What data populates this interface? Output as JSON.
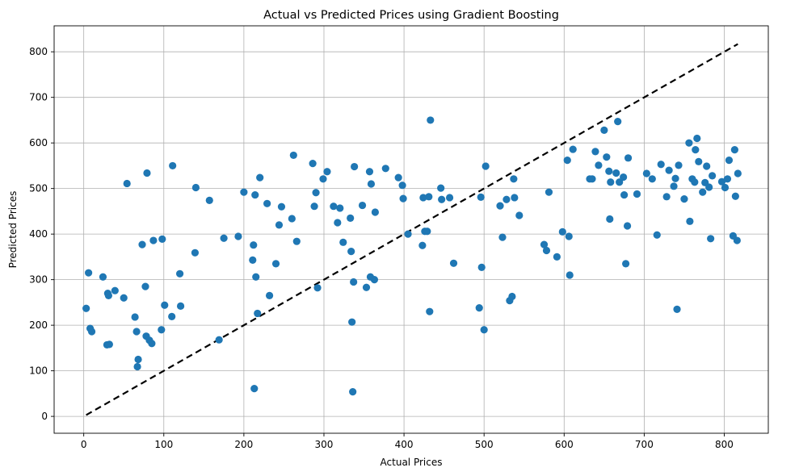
{
  "chart_data": {
    "type": "scatter",
    "title": "Actual vs Predicted Prices using Gradient Boosting",
    "xlabel": "Actual Prices",
    "ylabel": "Predicted Prices",
    "xlim": [
      -37,
      855
    ],
    "ylim": [
      -37,
      857
    ],
    "xticks": [
      0,
      100,
      200,
      300,
      400,
      500,
      600,
      700,
      800
    ],
    "yticks": [
      0,
      100,
      200,
      300,
      400,
      500,
      600,
      700,
      800
    ],
    "grid": true,
    "point_color": "#1f77b4",
    "reference_line": {
      "style": "dashed",
      "color": "#000000",
      "points": [
        [
          3,
          3
        ],
        [
          817,
          817
        ]
      ]
    },
    "series": [
      {
        "points": [
          [
            3,
            237
          ],
          [
            6,
            315
          ],
          [
            8,
            193
          ],
          [
            10,
            186
          ],
          [
            24,
            306
          ],
          [
            29,
            157
          ],
          [
            30,
            270
          ],
          [
            31,
            265
          ],
          [
            32,
            158
          ],
          [
            39,
            276
          ],
          [
            50,
            260
          ],
          [
            54,
            511
          ],
          [
            64,
            218
          ],
          [
            66,
            186
          ],
          [
            67,
            109
          ],
          [
            68,
            125
          ],
          [
            73,
            377
          ],
          [
            77,
            285
          ],
          [
            78,
            176
          ],
          [
            79,
            534
          ],
          [
            82,
            167
          ],
          [
            85,
            160
          ],
          [
            87,
            386
          ],
          [
            97,
            190
          ],
          [
            98,
            389
          ],
          [
            101,
            244
          ],
          [
            110,
            219
          ],
          [
            111,
            550
          ],
          [
            120,
            313
          ],
          [
            121,
            242
          ],
          [
            139,
            359
          ],
          [
            140,
            502
          ],
          [
            157,
            474
          ],
          [
            169,
            168
          ],
          [
            175,
            391
          ],
          [
            193,
            395
          ],
          [
            200,
            492
          ],
          [
            211,
            343
          ],
          [
            212,
            376
          ],
          [
            213,
            61
          ],
          [
            214,
            486
          ],
          [
            215,
            306
          ],
          [
            217,
            226
          ],
          [
            220,
            524
          ],
          [
            229,
            467
          ],
          [
            232,
            265
          ],
          [
            240,
            335
          ],
          [
            244,
            420
          ],
          [
            247,
            460
          ],
          [
            260,
            434
          ],
          [
            262,
            573
          ],
          [
            266,
            384
          ],
          [
            286,
            555
          ],
          [
            288,
            461
          ],
          [
            290,
            491
          ],
          [
            292,
            282
          ],
          [
            299,
            521
          ],
          [
            304,
            537
          ],
          [
            312,
            461
          ],
          [
            317,
            425
          ],
          [
            320,
            457
          ],
          [
            324,
            382
          ],
          [
            333,
            435
          ],
          [
            334,
            362
          ],
          [
            335,
            207
          ],
          [
            336,
            54
          ],
          [
            337,
            295
          ],
          [
            338,
            548
          ],
          [
            348,
            463
          ],
          [
            353,
            283
          ],
          [
            357,
            537
          ],
          [
            358,
            306
          ],
          [
            359,
            510
          ],
          [
            363,
            300
          ],
          [
            364,
            448
          ],
          [
            377,
            544
          ],
          [
            393,
            524
          ],
          [
            398,
            507
          ],
          [
            399,
            478
          ],
          [
            405,
            400
          ],
          [
            423,
            375
          ],
          [
            424,
            480
          ],
          [
            426,
            406
          ],
          [
            429,
            406
          ],
          [
            431,
            482
          ],
          [
            432,
            230
          ],
          [
            433,
            650
          ],
          [
            446,
            501
          ],
          [
            447,
            476
          ],
          [
            457,
            480
          ],
          [
            462,
            336
          ],
          [
            494,
            238
          ],
          [
            496,
            481
          ],
          [
            497,
            327
          ],
          [
            500,
            190
          ],
          [
            502,
            549
          ],
          [
            520,
            462
          ],
          [
            523,
            393
          ],
          [
            528,
            476
          ],
          [
            532,
            254
          ],
          [
            535,
            263
          ],
          [
            537,
            521
          ],
          [
            538,
            480
          ],
          [
            544,
            441
          ],
          [
            575,
            377
          ],
          [
            578,
            364
          ],
          [
            581,
            492
          ],
          [
            591,
            350
          ],
          [
            598,
            405
          ],
          [
            604,
            562
          ],
          [
            606,
            395
          ],
          [
            607,
            310
          ],
          [
            611,
            586
          ],
          [
            632,
            521
          ],
          [
            635,
            521
          ],
          [
            639,
            581
          ],
          [
            643,
            551
          ],
          [
            650,
            628
          ],
          [
            653,
            569
          ],
          [
            656,
            538
          ],
          [
            657,
            433
          ],
          [
            658,
            514
          ],
          [
            665,
            534
          ],
          [
            667,
            647
          ],
          [
            669,
            514
          ],
          [
            674,
            525
          ],
          [
            675,
            486
          ],
          [
            677,
            335
          ],
          [
            679,
            418
          ],
          [
            680,
            567
          ],
          [
            691,
            488
          ],
          [
            703,
            533
          ],
          [
            710,
            521
          ],
          [
            716,
            398
          ],
          [
            721,
            553
          ],
          [
            728,
            482
          ],
          [
            731,
            540
          ],
          [
            737,
            505
          ],
          [
            739,
            522
          ],
          [
            741,
            235
          ],
          [
            743,
            551
          ],
          [
            750,
            477
          ],
          [
            756,
            600
          ],
          [
            757,
            428
          ],
          [
            760,
            521
          ],
          [
            763,
            514
          ],
          [
            764,
            585
          ],
          [
            766,
            610
          ],
          [
            768,
            559
          ],
          [
            773,
            492
          ],
          [
            776,
            513
          ],
          [
            778,
            549
          ],
          [
            781,
            503
          ],
          [
            783,
            390
          ],
          [
            785,
            528
          ],
          [
            797,
            515
          ],
          [
            801,
            502
          ],
          [
            804,
            521
          ],
          [
            806,
            562
          ],
          [
            811,
            396
          ],
          [
            813,
            585
          ],
          [
            814,
            483
          ],
          [
            816,
            386
          ],
          [
            817,
            533
          ]
        ]
      }
    ]
  }
}
